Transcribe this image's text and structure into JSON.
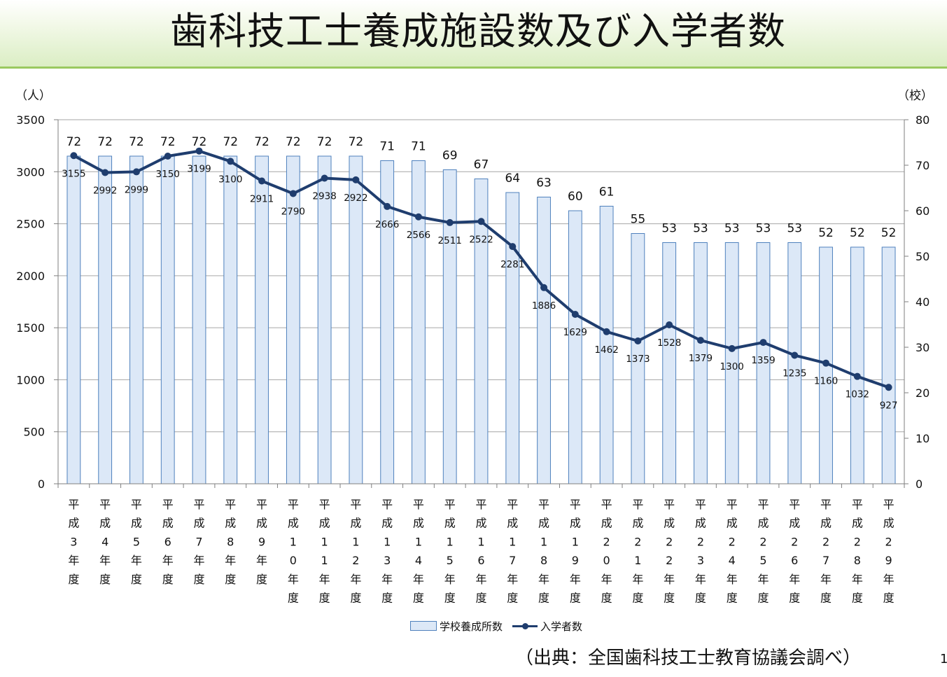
{
  "title": "歯科技工士養成施設数及び入学者数",
  "source": "（出典：全国歯科技工士教育協議会調べ）",
  "page_number": "1",
  "colors": {
    "bar_fill": "#dce8f7",
    "bar_stroke": "#4f81bd",
    "line": "#1f3d6e",
    "grid": "#a6a6a6",
    "title_band": "#dbeec4",
    "title_border": "#9ac960"
  },
  "chart_data": {
    "type": "bar",
    "title": "",
    "y_left_label": "（人）",
    "y_right_label": "（校）",
    "y_left_ticks": [
      "0",
      "500",
      "1000",
      "1500",
      "2000",
      "2500",
      "3000",
      "3500"
    ],
    "y_right_ticks": [
      "0",
      "10",
      "20",
      "30",
      "40",
      "50",
      "60",
      "70",
      "80"
    ],
    "ylim_left": [
      0,
      3500
    ],
    "ylim_right": [
      0,
      80
    ],
    "grid": true,
    "legend_position": "bottom",
    "categories": [
      "平成3年度",
      "平成4年度",
      "平成5年度",
      "平成6年度",
      "平成7年度",
      "平成8年度",
      "平成9年度",
      "平成10年度",
      "平成11年度",
      "平成12年度",
      "平成13年度",
      "平成14年度",
      "平成15年度",
      "平成16年度",
      "平成17年度",
      "平成18年度",
      "平成19年度",
      "平成20年度",
      "平成21年度",
      "平成22年度",
      "平成23年度",
      "平成24年度",
      "平成25年度",
      "平成26年度",
      "平成27年度",
      "平成28年度",
      "平成29年度"
    ],
    "series": [
      {
        "name": "学校養成所数",
        "type": "bar",
        "axis": "right",
        "values": [
          72,
          72,
          72,
          72,
          72,
          72,
          72,
          72,
          72,
          72,
          71,
          71,
          69,
          67,
          64,
          63,
          60,
          61,
          55,
          53,
          53,
          53,
          53,
          53,
          52,
          52,
          52
        ]
      },
      {
        "name": "入学者数",
        "type": "line",
        "axis": "left",
        "values": [
          3155,
          2992,
          2999,
          3150,
          3199,
          3100,
          2911,
          2790,
          2938,
          2922,
          2666,
          2566,
          2511,
          2522,
          2281,
          1886,
          1629,
          1462,
          1373,
          1528,
          1379,
          1300,
          1359,
          1235,
          1160,
          1032,
          927
        ]
      }
    ]
  }
}
